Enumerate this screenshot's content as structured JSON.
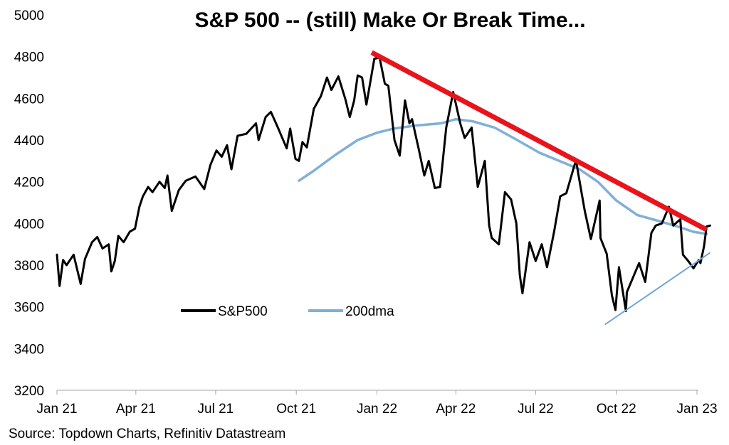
{
  "chart_data": {
    "type": "line",
    "title": "S&P 500 -- (still) Make Or Break Time...",
    "source": "Source: Topdown Charts, Refinitiv Datastream",
    "ylim": [
      3200,
      5000
    ],
    "yticks": [
      "5000",
      "4800",
      "4600",
      "4400",
      "4200",
      "4000",
      "3800",
      "3600",
      "3400",
      "3200"
    ],
    "xlim": [
      "2021-01-01",
      "2023-01-12"
    ],
    "xticks": [
      {
        "date": "2021-01-01",
        "label": "Jan 21"
      },
      {
        "date": "2021-04-01",
        "label": "Apr 21"
      },
      {
        "date": "2021-07-01",
        "label": "Jul 21"
      },
      {
        "date": "2021-10-01",
        "label": "Oct 21"
      },
      {
        "date": "2022-01-01",
        "label": "Jan 22"
      },
      {
        "date": "2022-04-01",
        "label": "Apr 22"
      },
      {
        "date": "2022-07-01",
        "label": "Jul 22"
      },
      {
        "date": "2022-10-01",
        "label": "Oct 22"
      },
      {
        "date": "2023-01-01",
        "label": "Jan 23"
      }
    ],
    "grid": false,
    "legend_position": "lower-middle",
    "colors": {
      "sp500": "#000000",
      "dma": "#7fb0d8",
      "resistance": "#e8141c",
      "support": "#6ea6d6"
    },
    "series": [
      {
        "name": "S&P500",
        "key": "sp500",
        "points": [
          [
            "2021-01-01",
            3850
          ],
          [
            "2021-01-04",
            3700
          ],
          [
            "2021-01-08",
            3825
          ],
          [
            "2021-01-12",
            3800
          ],
          [
            "2021-01-20",
            3850
          ],
          [
            "2021-01-28",
            3710
          ],
          [
            "2021-02-02",
            3830
          ],
          [
            "2021-02-10",
            3910
          ],
          [
            "2021-02-16",
            3935
          ],
          [
            "2021-02-22",
            3880
          ],
          [
            "2021-03-01",
            3900
          ],
          [
            "2021-03-04",
            3770
          ],
          [
            "2021-03-08",
            3820
          ],
          [
            "2021-03-12",
            3940
          ],
          [
            "2021-03-18",
            3910
          ],
          [
            "2021-03-25",
            3960
          ],
          [
            "2021-03-31",
            3975
          ],
          [
            "2021-04-05",
            4080
          ],
          [
            "2021-04-09",
            4130
          ],
          [
            "2021-04-15",
            4175
          ],
          [
            "2021-04-20",
            4150
          ],
          [
            "2021-04-28",
            4200
          ],
          [
            "2021-05-04",
            4170
          ],
          [
            "2021-05-07",
            4230
          ],
          [
            "2021-05-12",
            4060
          ],
          [
            "2021-05-20",
            4160
          ],
          [
            "2021-05-28",
            4205
          ],
          [
            "2021-06-08",
            4225
          ],
          [
            "2021-06-18",
            4165
          ],
          [
            "2021-06-25",
            4280
          ],
          [
            "2021-07-02",
            4350
          ],
          [
            "2021-07-08",
            4320
          ],
          [
            "2021-07-14",
            4375
          ],
          [
            "2021-07-19",
            4260
          ],
          [
            "2021-07-26",
            4420
          ],
          [
            "2021-08-05",
            4430
          ],
          [
            "2021-08-16",
            4480
          ],
          [
            "2021-08-19",
            4400
          ],
          [
            "2021-08-27",
            4510
          ],
          [
            "2021-09-02",
            4535
          ],
          [
            "2021-09-10",
            4460
          ],
          [
            "2021-09-20",
            4360
          ],
          [
            "2021-09-24",
            4455
          ],
          [
            "2021-09-30",
            4310
          ],
          [
            "2021-10-04",
            4300
          ],
          [
            "2021-10-08",
            4390
          ],
          [
            "2021-10-13",
            4365
          ],
          [
            "2021-10-21",
            4550
          ],
          [
            "2021-10-29",
            4610
          ],
          [
            "2021-11-05",
            4700
          ],
          [
            "2021-11-10",
            4640
          ],
          [
            "2021-11-18",
            4705
          ],
          [
            "2021-11-26",
            4595
          ],
          [
            "2021-12-01",
            4510
          ],
          [
            "2021-12-06",
            4590
          ],
          [
            "2021-12-10",
            4710
          ],
          [
            "2021-12-15",
            4700
          ],
          [
            "2021-12-20",
            4570
          ],
          [
            "2021-12-29",
            4790
          ],
          [
            "2022-01-04",
            4795
          ],
          [
            "2022-01-10",
            4670
          ],
          [
            "2022-01-14",
            4660
          ],
          [
            "2022-01-21",
            4400
          ],
          [
            "2022-01-27",
            4325
          ],
          [
            "2022-02-02",
            4590
          ],
          [
            "2022-02-07",
            4480
          ],
          [
            "2022-02-10",
            4500
          ],
          [
            "2022-02-18",
            4350
          ],
          [
            "2022-02-24",
            4230
          ],
          [
            "2022-03-01",
            4300
          ],
          [
            "2022-03-08",
            4170
          ],
          [
            "2022-03-14",
            4175
          ],
          [
            "2022-03-21",
            4460
          ],
          [
            "2022-03-29",
            4630
          ],
          [
            "2022-04-06",
            4480
          ],
          [
            "2022-04-11",
            4410
          ],
          [
            "2022-04-19",
            4460
          ],
          [
            "2022-04-26",
            4175
          ],
          [
            "2022-05-04",
            4300
          ],
          [
            "2022-05-09",
            3990
          ],
          [
            "2022-05-12",
            3930
          ],
          [
            "2022-05-20",
            3900
          ],
          [
            "2022-05-27",
            4150
          ],
          [
            "2022-06-03",
            4115
          ],
          [
            "2022-06-09",
            4000
          ],
          [
            "2022-06-13",
            3750
          ],
          [
            "2022-06-16",
            3665
          ],
          [
            "2022-06-24",
            3910
          ],
          [
            "2022-07-01",
            3820
          ],
          [
            "2022-07-08",
            3900
          ],
          [
            "2022-07-14",
            3790
          ],
          [
            "2022-07-22",
            3960
          ],
          [
            "2022-07-29",
            4130
          ],
          [
            "2022-08-05",
            4145
          ],
          [
            "2022-08-16",
            4305
          ],
          [
            "2022-08-19",
            4230
          ],
          [
            "2022-08-26",
            4060
          ],
          [
            "2022-09-02",
            3925
          ],
          [
            "2022-09-12",
            4110
          ],
          [
            "2022-09-13",
            3930
          ],
          [
            "2022-09-20",
            3855
          ],
          [
            "2022-09-26",
            3655
          ],
          [
            "2022-09-30",
            3585
          ],
          [
            "2022-10-04",
            3790
          ],
          [
            "2022-10-12",
            3580
          ],
          [
            "2022-10-13",
            3670
          ],
          [
            "2022-10-21",
            3750
          ],
          [
            "2022-10-27",
            3810
          ],
          [
            "2022-11-03",
            3720
          ],
          [
            "2022-11-10",
            3955
          ],
          [
            "2022-11-15",
            3990
          ],
          [
            "2022-11-22",
            4000
          ],
          [
            "2022-11-30",
            4080
          ],
          [
            "2022-12-05",
            3990
          ],
          [
            "2022-12-13",
            4020
          ],
          [
            "2022-12-16",
            3850
          ],
          [
            "2022-12-22",
            3820
          ],
          [
            "2022-12-28",
            3785
          ],
          [
            "2023-01-03",
            3825
          ],
          [
            "2023-01-05",
            3810
          ],
          [
            "2023-01-09",
            3890
          ],
          [
            "2023-01-12",
            3985
          ],
          [
            "2023-01-16",
            3990
          ]
        ]
      },
      {
        "name": "200dma",
        "key": "dma",
        "points": [
          [
            "2021-10-04",
            4205
          ],
          [
            "2021-10-20",
            4250
          ],
          [
            "2021-11-15",
            4330
          ],
          [
            "2021-12-10",
            4400
          ],
          [
            "2022-01-01",
            4435
          ],
          [
            "2022-01-20",
            4455
          ],
          [
            "2022-02-15",
            4470
          ],
          [
            "2022-03-15",
            4480
          ],
          [
            "2022-04-01",
            4500
          ],
          [
            "2022-04-20",
            4490
          ],
          [
            "2022-05-15",
            4460
          ],
          [
            "2022-06-10",
            4400
          ],
          [
            "2022-07-05",
            4340
          ],
          [
            "2022-07-25",
            4305
          ],
          [
            "2022-08-20",
            4260
          ],
          [
            "2022-09-10",
            4200
          ],
          [
            "2022-10-01",
            4110
          ],
          [
            "2022-10-25",
            4040
          ],
          [
            "2022-11-20",
            4010
          ],
          [
            "2022-12-10",
            3985
          ],
          [
            "2022-12-28",
            3960
          ],
          [
            "2023-01-12",
            3950
          ]
        ]
      }
    ],
    "trendlines": [
      {
        "key": "resistance",
        "from": [
          "2021-12-26",
          4820
        ],
        "to": [
          "2023-01-12",
          3970
        ]
      },
      {
        "key": "support",
        "from": [
          "2022-09-18",
          3515
        ],
        "to": [
          "2023-01-16",
          3860
        ]
      }
    ]
  }
}
